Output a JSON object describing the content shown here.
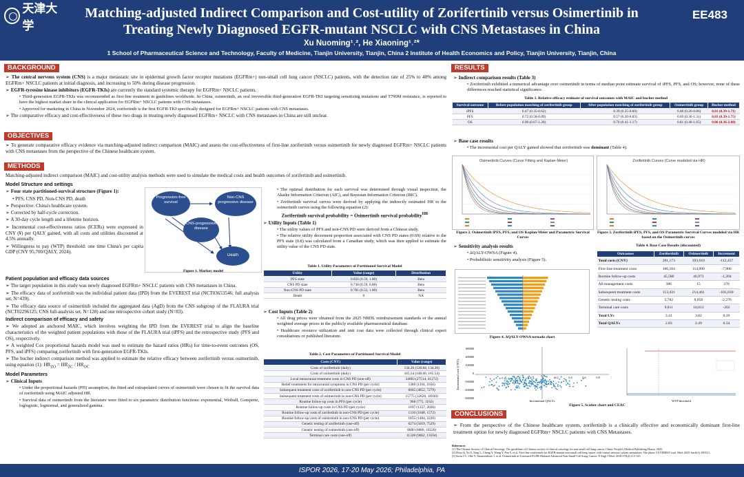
{
  "header": {
    "logo_text": "天津大学",
    "title_line1": "Matching-adjusted Indirect Comparison and Cost-utility of Zorifertinib versus Osimertinib in",
    "title_line2": "Treating Newly Diagnosed EGFR-mutant NSCLC with CNS Metastases in China",
    "authors": "Xu Nuoming¹˒², He Xiaoning¹˒²*",
    "affiliations": "1 School of Pharmaceutical Science and Technology, Faculty of Medicine, Tianjin University, Tianjin, China 2  Institute of Health Economics and Policy, Tianjin University, Tianjin, China",
    "poster_code": "EE483"
  },
  "sections": {
    "background": "BACKGROUND",
    "objectives": "OBJECTIVES",
    "methods": "METHODS",
    "results": "RESULTS",
    "conclusions": "CONCLUSIONS"
  },
  "background": {
    "p1a": "The central nervous system (CNS)",
    "p1b": " is a major metastatic site in epidermal growth factor receptor mutations (EGFRm+) non-small cell lung cancer (NSCLC) patients, with the detection rate of 25% to 40% among EGFRm+ NSCLC patients at initial diagnosis, and increasing to 50% during disease progression.",
    "p2a": "EGFR-tyrosine kinase inhibitors (EGFR-TKIs)",
    "p2b": " are currently the standard systemic therapy for EGFRm+ NSCLC patients.",
    "b1": "Third-generation EGFR-TKIs was recommended as first-line treatment in guidelines worldwide. In China, osimertinib, an oral irreversible third-generation EGFR-TKI targeting sensitizing mutations and T790M resistance, is reported to have the highest market share in the clinical application for EGFRm+ NSCLC patients with CNS metastases.",
    "b2": "Approved for marketing in China in November 2024, zorifertinib is the first EGFR-TKI specifically designed for EGFRm+ NSCLC patients with CNS metastases.",
    "p3": "The comparative efficacy and cost-effectiveness of these two drugs in treating newly diagnosed EGFRm+ NSCLC with CNS metastases in China are still unclear."
  },
  "objectives": {
    "text": "To generate comparative efficacy evidence via matching-adjusted indirect comparison (MAIC) and assess the cost-effectiveness of first-line zorifertinib versus osimertinib for newly diagnosed EGFRm+ NSCLC patients with CNS metastases from the perspective of the Chinese healthcare system."
  },
  "methods": {
    "intro": "Matching-adjusted indirect comparison (MAIC) and cost-utility analysis methods were used to simulate the medical costs and health outcomes of zorifertinib and osimertinib.",
    "model_h": "Model Structure and settings",
    "m1": "Four state partitioned-survival structure (Figure 1):",
    "m1b": "PFS, CNS PD, Non-CNS PD, death",
    "m2": "Perspective: China's healthcare system.",
    "m3": "Corrected by half-cycle correction.",
    "m4": "A 30-day cycle length and a lifetime horizon.",
    "m5": "Incremental cost-effectiveness ratios (ICERs) were expressed in CNY (¥) per QALY gained, with all costs and utilities discounted at 4.5% annually.",
    "m6": "Willingness to pay (WTP) threshold: one time China's per capita GDP (CNY 95,700/QALY, 2024).",
    "fig1_caption": "Figure 1.  Markov model",
    "markov": {
      "s1": "Progression-free survival",
      "s2": "Non-CNS progressive disease",
      "s3": "CNS-progressive disease",
      "s4": "Death"
    },
    "pat_h": "Patient population and efficacy data sources",
    "pt1": "The target population in this study was newly diagnosed EGFRm+ NSCLC patients with CNS metastases in China.",
    "pt2": "The efficacy data of zorifertinib was the individual patient data (IPD) from the EVEREST trial (NCT03653546; full analysis set, N=439).",
    "pt3": "The efficacy data source of osimertinib included the aggregated data (AgD) from the CNS subgroup of the FLAURA trial (NCT02296125; CNS full-analysis set, N=128) and one retrospective cohort study (N=83).",
    "ind_h": "Indirect comparison of efficacy and safety",
    "ic1": "We adopted an anchored MAIC, which involves weighting the IPD from the EVEREST trial to align the baseline characteristics of the weighted patient populations with those of the FLAURA trial (iPFS) and the retrospective study (PFS and OS), respectively.",
    "ic2": "A weighted Cox proportional hazards model was used to estimate the hazard ratios (HRs) for time-to-event outcomes (OS, PFS, and iPFS) comparing zorifertinib with first-generation EGFR-TKIs.",
    "ic3": "The bucher indirect comparison method was applied to estimate the relative efficacy between zorifertinib versus osimertinib, using equation (1): HR",
    "par_h": "Model Parameters",
    "ci_h": "Clinical Inputs",
    "ci1": "Under the proportional hazards (PH) assumption, the fitted and extrapolated curves of osimertinib were chosen to fit the survival data of zorifertinib using MAIC adjusted HR.",
    "ci2": "Survival data of osimertinib from the literature were fitted to six parametric distribution functions: exponential, Weibull, Gompertz, loglogistic, lognormal, and generalized gamma.",
    "c2a": "The optimal distribution for each survival was determined through visual inspection, the Akaike Information Criterion (AIC), and Bayesian Information Criterion (BIC).",
    "c2b": "Zorifertinib survival curves were derived by applying the indirectly estimated HR to the osimertinib curves using the following equation (2):",
    "c2c": "Zorifertinib survival probability = Osimertinib survival probability",
    "ui_h": "Utility Inputs (Table 1)",
    "ui1": "The utility values of PFS and non-CNS PD were derived from a Chinese study.",
    "ui2": "The relative utility decrement proportion associated with CNS PD states (0.69) relative to the PFS state (0.8) was calculated from a Canadian study, which was then applied to estimate the utility value of the CNS PD state.",
    "t1_cap": "Table 1.  Utility Parameters of Partitioned Survival Model",
    "t1_head": [
      "Utility",
      "Value (range)",
      "Distribution"
    ],
    "t1_rows": [
      [
        "PFS state",
        "0.856 (0.59, 1.00)",
        "Beta"
      ],
      [
        "CNS PD state",
        "0.738 (0.59, 0.88)",
        "Beta"
      ],
      [
        "Non-CNS PD state",
        "0.781 (0.52, 1.00)",
        "Beta"
      ],
      [
        "Death",
        "0",
        "NA"
      ]
    ],
    "co_h": "Cost Inputs (Table 2)",
    "co1": "All drug prices were obtained from the 2025 NRDL reimbursement standards or the annual weighted average prices in the publicly available pharmaceutical database.",
    "co2": "Healthcare resource utilization and unit cost data were collected through clinical expert consultations or published literature.",
    "t2_cap": "Table 2.  Cost Parameters of Partitioned Survival Model",
    "t2_head": [
      "Costs (CNY)",
      "Value (range)"
    ],
    "t2_rows": [
      [
        "Costs of zorifertinib (daily)",
        "134.26 (120.84, 134.26)"
      ],
      [
        "Costs of osimertinib (daily)",
        "165.54 (148.00, 165.54)"
      ],
      [
        "Local intracranial treatment costs in CNS PD (one-off)",
        "34083 (27514, 41272)"
      ],
      [
        "Relief treatments for intracranial symptoms in CNS PD (per cycle)",
        "1380 (1104, 1656)"
      ],
      [
        "Subsequent treatment costs of zorifertinib in non-CNS PD (per cycle)",
        "6065 (4852, 7279)"
      ],
      [
        "Subsequent treatment costs of osimertinib in non-CNS PD (per cycle)",
        "15775 (12620, 18930)"
      ],
      [
        "Routine follow-up costs in PFS (per cycle)",
        "968 (775, 1162)"
      ],
      [
        "Routine follow-up costs in CNS PD (per cycle)",
        "1697 (1357, 2036)"
      ],
      [
        "Routine follow-up costs of zorifertinib in non-CNS PD (per cycle)",
        "1310 (1048, 1572)"
      ],
      [
        "Routine follow-up costs of osimertinib in non-CNS PD (per cycle)",
        "1855 (1484, 2226)"
      ],
      [
        "Genetic testing of zorifertinib (one-off)",
        "6274 (5019, 7529)"
      ],
      [
        "Genetic testing of osimertinib (one-off)",
        "8600 (6880, 10320)"
      ],
      [
        "Terminal care costs (one-off)",
        "11328 (9062, 13594)"
      ]
    ]
  },
  "results": {
    "ic_h": "Indirect comparison results (Table 3)",
    "ic1": "Zorifertinib exhibited a numerical advantage over osimertinib in terms of median point estimate survival of iPFS, PFS, and OS; however, none of these differences reached statistical significance.",
    "t3_cap": "Table 3. Relative efficacy estimate of survival outcomes with MAIC and bucher method",
    "t3_head": [
      "Survival outcome",
      "Before population matching of zorifertinib group",
      "After population matching of zorifertinib group",
      "Osimertinib group",
      "Bucher method"
    ],
    "t3_rows": [
      [
        "iPFS",
        "0.47 (0.35-0.62)",
        "0.39 (0.25-0.60)",
        "0.48 (0.26-0.86)",
        "0.81 (0.39-1.71)"
      ],
      [
        "PFS",
        "0.72 (0.58-0.89)",
        "0.57 (0.39-0.83)",
        "0.69 (0.36-1.31)",
        "0.83 (0.39-1.75)"
      ],
      [
        "OS",
        "0.90 (0.67-1.20)",
        "0.70 (0.41-1.17)",
        "0.81 (0.40-1.65)",
        "0.86 (0.36-2.08)"
      ]
    ],
    "bc_h": "Base case results",
    "bc1a": "The incremental cost per QALY gained showed that zorifertinib was ",
    "bc1b": "dominant",
    "bc1c": " (Table 4).",
    "fig2_title": "Osimertinib Curves (Curve Fitting and Kaplan-Meier)",
    "fig3_title": "Zorifertinib Curves (Curve modeled via HR)",
    "fig2_cap": "Figure 2.  Osimertinib iPFS, PFS, and OS Kaplan-Meier and Parametric Survival Curves",
    "fig3_cap": "Figure 3. Zorifertinib iPFS, PFS, and OS Parametric Survival Curves modeled via HR based on the Osimertinib curves",
    "sa_h": "Sensitivity analysis results",
    "sa1": "ΔQALY-OWSA (Figure 4).",
    "sa2": "Probabilistic sensitivity analysis (Figure 5).",
    "fig4_cap": "Figure 4.  ΔQALY-OWSA tornado chart",
    "fig5_cap": "Figure 5. Scatter chart and CEAC",
    "fig5_xlabel": "Incremental QALYs",
    "fig5_ylabel": "Incremental cost (CNY)",
    "ceac_xlabel": "WTP threshold",
    "t4_cap": "Table 4. Base Case Results (discounted)",
    "t4_head": [
      "Outcomes",
      "Zorifertinib",
      "Osimertinib",
      "Increment"
    ],
    "t4_rows": [
      [
        "Total costs (CNY)",
        "281,173",
        "393,610",
        "-112,437"
      ],
      [
        "First-line treatment costs",
        "106,184",
        "114,090",
        "-7,906"
      ],
      [
        "Routine follow-up costs",
        "45,580",
        "46,973",
        "-1,394"
      ],
      [
        "All management costs",
        "386",
        "15",
        "370"
      ],
      [
        "Subsequent treatment costs",
        "113,431",
        "214,461",
        "-101,030"
      ],
      [
        "Genetic testing costs",
        "5,782",
        "8,058",
        "-2,276"
      ],
      [
        "Terminal care costs",
        "9,811",
        "10,013",
        "-202"
      ],
      [
        "Total LYs",
        "3.41",
        "3.02",
        "0.39"
      ],
      [
        "Total QALYs",
        "2.83",
        "2.49",
        "0.34"
      ]
    ]
  },
  "conclusions": {
    "text": "From the perspective of the Chinese healthcare system, zorifertinib is a clinically effective and economically dominant first-line treatment option for newly diagnosed EGFRm+ NSCLC patients with CNS Metastases."
  },
  "references": {
    "title": "References",
    "r1": "[1] The Chinese Society of Clinical Oncology. The guidelines of Chinese society of clinical oncology for non-small cell lung cancer. China: People's Medical Publishing House, 2025.",
    "r2": "[2] Zhou Q, Yu Y, Xing L, Cheng Y, Wang Y, Pan Y, et al. First-line zorifertinib for EGFR-mutant non-small cell lung cancer with central nervous system metastases: The phase 3 EVEREST trial. Med. 2025 Jan;6(1):100513.",
    "r3": "[3] Soria J-C, Ohe Y, Vansteenkiste J, et al. Osimertinib in Untreated EGFR-Mutated Advanced Non-Small-Cell Lung Cancer. N Engl J Med. 2018;378(2):113-125."
  },
  "footer": {
    "text": "ISPOR 2026, 17-20 May 2026; Philadelphia, PA"
  }
}
